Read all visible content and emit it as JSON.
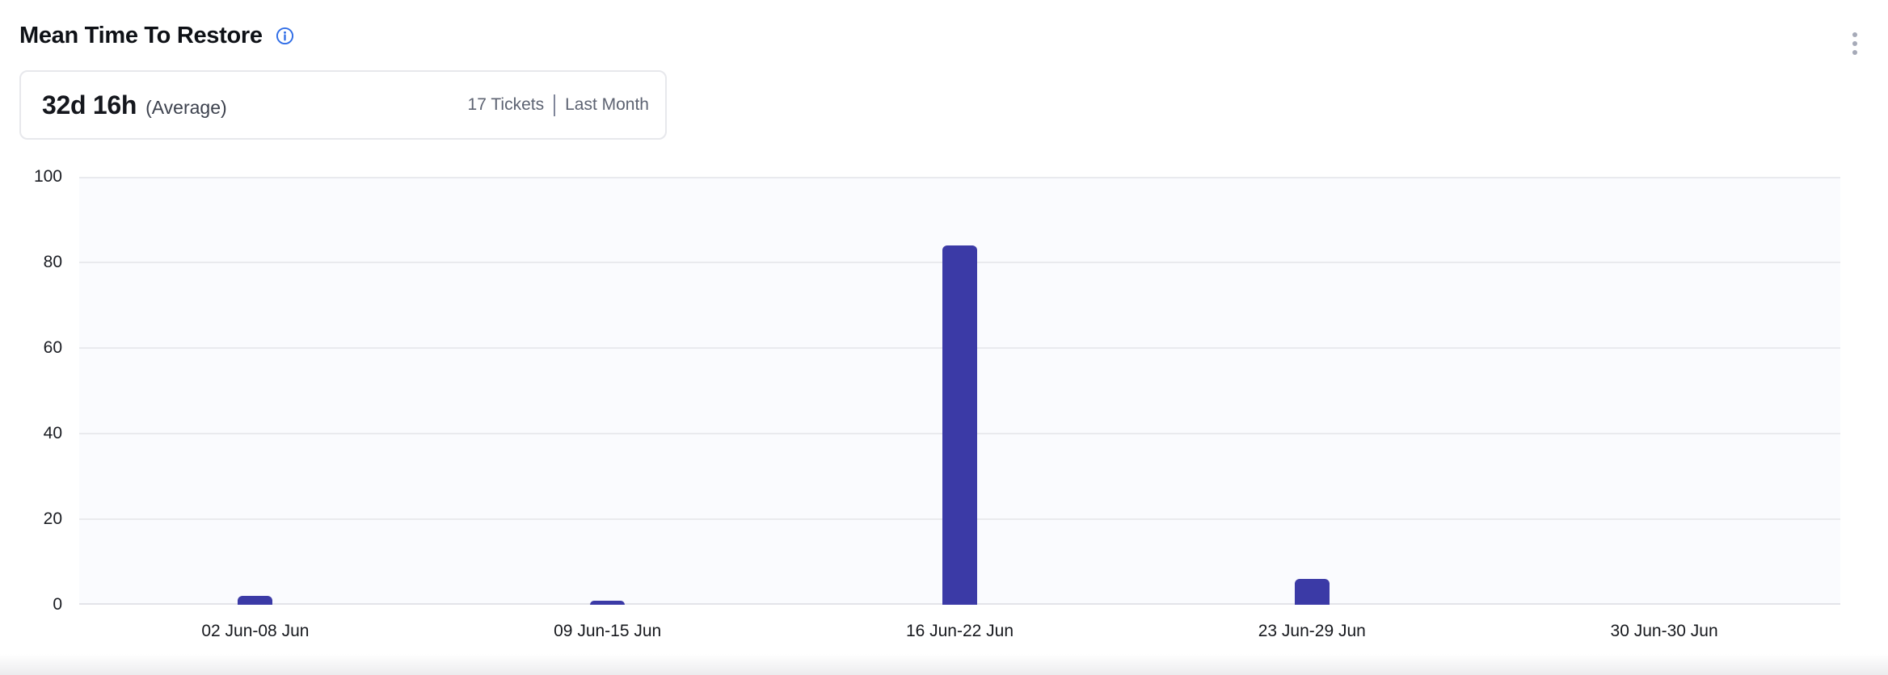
{
  "header": {
    "title": "Mean Time To Restore"
  },
  "summary": {
    "value": "32d 16h",
    "qualifier": "(Average)",
    "tickets_label": "17 Tickets",
    "period_label": "Last Month"
  },
  "chart_data": {
    "type": "bar",
    "title": "Mean Time To Restore",
    "categories": [
      "02 Jun-08 Jun",
      "09 Jun-15 Jun",
      "16 Jun-22 Jun",
      "23 Jun-29 Jun",
      "30 Jun-30 Jun"
    ],
    "values": [
      2,
      1,
      84,
      6,
      0
    ],
    "xlabel": "",
    "ylabel": "",
    "ylim": [
      0,
      100
    ],
    "yticks": [
      0,
      20,
      40,
      60,
      80,
      100
    ],
    "grid": true,
    "legend": false,
    "bar_color": "#3b3aa6",
    "plot_background": "#fafbfe",
    "grid_color": "#e9eaee",
    "tick_label_color": "#1a1c22"
  },
  "icons": {
    "info": "info-icon",
    "menu": "kebab-menu-icon"
  },
  "colors": {
    "info_icon": "#2e6ce6",
    "menu_dots": "#a6aab8",
    "title_text": "#0e1116",
    "meta_text": "#5d6372",
    "card_border": "#e7e8ec"
  }
}
